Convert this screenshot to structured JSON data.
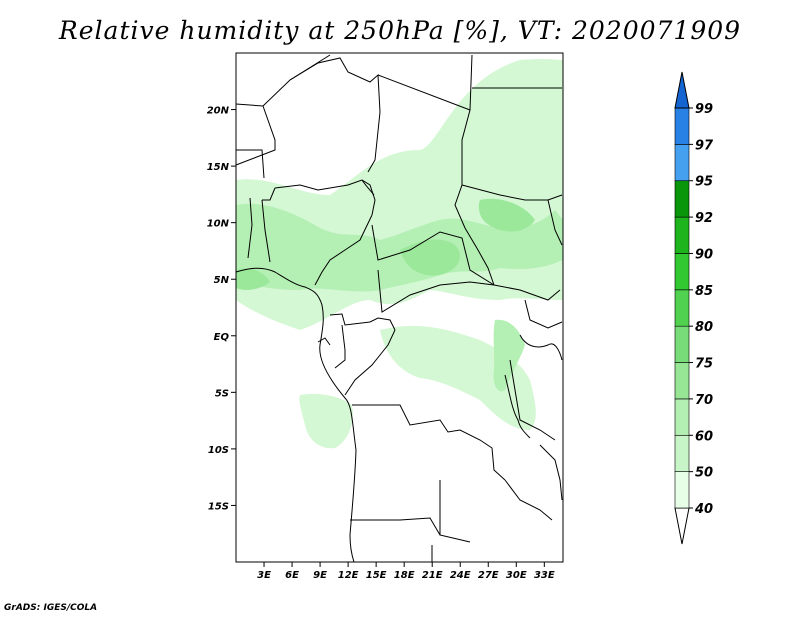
{
  "title": "Relative humidity at 250hPa [%], VT: 2020071909",
  "footer": "GrADS: IGES/COLA",
  "map": {
    "lon_range": [
      0,
      35
    ],
    "lat_range": [
      -20,
      25
    ],
    "lat_ticks": [
      {
        "label": "20N",
        "value": 20
      },
      {
        "label": "15N",
        "value": 15
      },
      {
        "label": "10N",
        "value": 10
      },
      {
        "label": "5N",
        "value": 5
      },
      {
        "label": "EQ",
        "value": 0
      },
      {
        "label": "5S",
        "value": -5
      },
      {
        "label": "10S",
        "value": -10
      },
      {
        "label": "15S",
        "value": -15
      }
    ],
    "lon_ticks": [
      {
        "label": "3E",
        "value": 3
      },
      {
        "label": "6E",
        "value": 6
      },
      {
        "label": "9E",
        "value": 9
      },
      {
        "label": "12E",
        "value": 12
      },
      {
        "label": "15E",
        "value": 15
      },
      {
        "label": "18E",
        "value": 18
      },
      {
        "label": "21E",
        "value": 21
      },
      {
        "label": "24E",
        "value": 24
      },
      {
        "label": "27E",
        "value": 27
      },
      {
        "label": "30E",
        "value": 30
      },
      {
        "label": "33E",
        "value": 33
      }
    ]
  },
  "colorbar": {
    "levels": [
      "40",
      "50",
      "60",
      "70",
      "75",
      "80",
      "85",
      "90",
      "92",
      "95",
      "97",
      "99"
    ],
    "colors": [
      "#e6ffe6",
      "#c8f5c8",
      "#b3eeb3",
      "#96e696",
      "#78dc78",
      "#50d250",
      "#32c832",
      "#1eb41e",
      "#0a960a",
      "#46a0f0",
      "#2882e6",
      "#1464d2"
    ]
  },
  "colors": {
    "land_outline": "#000000",
    "humidity_light": "#d4f7d4",
    "humidity_medium": "#b4efb4",
    "humidity_strong": "#9be89b"
  }
}
